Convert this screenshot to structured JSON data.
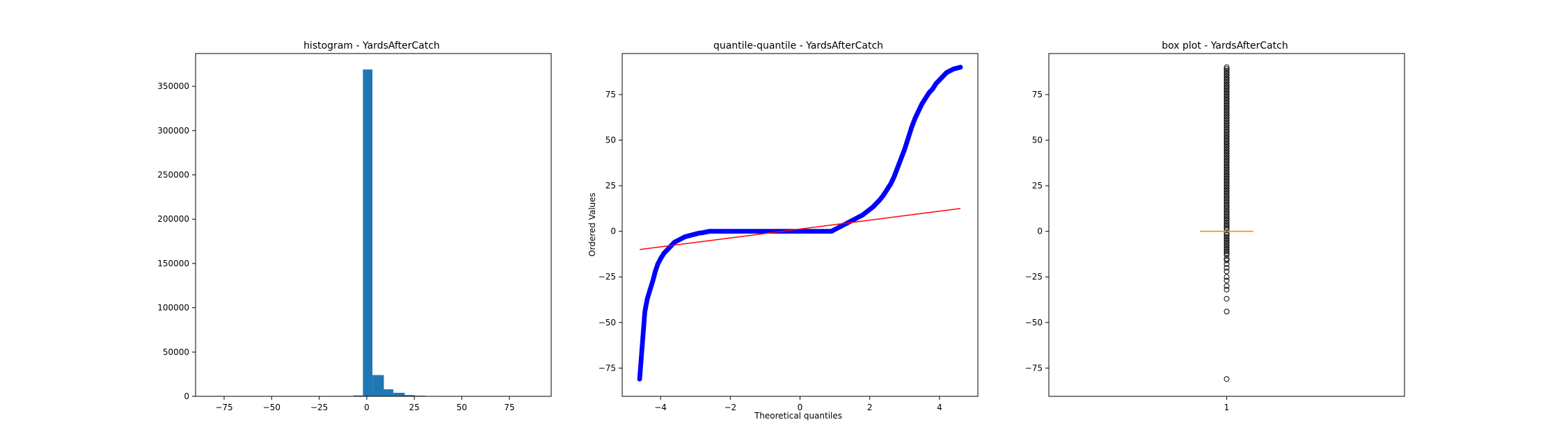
{
  "chart_data": [
    {
      "type": "bar",
      "title": "histogram - YardsAfterCatch",
      "xlabel": "",
      "ylabel": "",
      "xlim": [
        -90,
        97
      ],
      "ylim": [
        0,
        387000
      ],
      "xticks": [
        -75,
        -50,
        -25,
        0,
        25,
        50,
        75
      ],
      "yticks": [
        0,
        50000,
        100000,
        150000,
        200000,
        250000,
        300000,
        350000
      ],
      "color": "#1f77b4",
      "bins": [
        {
          "x0": -7,
          "x1": -2,
          "value": 1000
        },
        {
          "x0": -2,
          "x1": 3,
          "value": 369000
        },
        {
          "x0": 3,
          "x1": 9,
          "value": 24000
        },
        {
          "x0": 9,
          "x1": 14,
          "value": 8000
        },
        {
          "x0": 14,
          "x1": 20,
          "value": 4000
        },
        {
          "x0": 20,
          "x1": 25,
          "value": 1500
        },
        {
          "x0": 25,
          "x1": 31,
          "value": 700
        },
        {
          "x0": 31,
          "x1": 37,
          "value": 400
        },
        {
          "x0": 37,
          "x1": 42,
          "value": 300
        },
        {
          "x0": 42,
          "x1": 48,
          "value": 200
        },
        {
          "x0": 48,
          "x1": 54,
          "value": 120
        },
        {
          "x0": 54,
          "x1": 60,
          "value": 60
        }
      ]
    },
    {
      "type": "scatter",
      "title": "quantile-quantile - YardsAfterCatch",
      "xlabel": "Theoretical quantiles",
      "ylabel": "Ordered Values",
      "xlim": [
        -5.1,
        5.1
      ],
      "ylim": [
        -90.5,
        97.5
      ],
      "xticks": [
        -4,
        -2,
        0,
        2,
        4
      ],
      "yticks": [
        -75,
        -50,
        -25,
        0,
        25,
        50,
        75
      ],
      "marker_color": "#0000ff",
      "line_color": "#ff0000",
      "fit_line": {
        "x": [
          -4.6,
          4.6
        ],
        "y": [
          -10,
          12.5
        ]
      },
      "quantile_curve": {
        "x": [
          -4.6,
          -4.45,
          -4.38,
          -4.3,
          -4.22,
          -4.15,
          -4.08,
          -4.0,
          -3.9,
          -3.8,
          -3.7,
          -3.6,
          -3.5,
          -3.4,
          -3.3,
          -3.2,
          -3.1,
          -3.0,
          -2.9,
          -2.8,
          -2.7,
          -2.6,
          -2.5,
          -2.0,
          -1.5,
          -1.0,
          -0.5,
          0.0,
          0.5,
          0.9,
          1.0,
          1.1,
          1.2,
          1.3,
          1.4,
          1.5,
          1.6,
          1.7,
          1.8,
          1.9,
          2.0,
          2.1,
          2.2,
          2.3,
          2.4,
          2.5,
          2.6,
          2.7,
          2.8,
          2.9,
          3.0,
          3.1,
          3.2,
          3.3,
          3.4,
          3.5,
          3.6,
          3.7,
          3.8,
          3.9,
          4.0,
          4.1,
          4.2,
          4.3,
          4.4,
          4.6
        ],
        "y": [
          -81,
          -44,
          -37,
          -32,
          -27,
          -22,
          -18,
          -15,
          -12,
          -10,
          -8,
          -6,
          -5,
          -4,
          -3,
          -2.5,
          -2,
          -1.5,
          -1,
          -0.8,
          -0.4,
          0,
          0,
          0,
          0,
          0,
          0,
          0,
          0,
          0,
          1,
          2,
          3,
          4,
          5,
          6,
          7,
          8,
          9,
          10.5,
          12,
          13.5,
          15.5,
          17.5,
          20,
          23,
          26,
          30,
          35,
          40,
          45,
          51,
          57,
          62,
          66,
          70,
          73,
          76,
          78,
          81,
          83,
          85,
          87,
          88,
          89,
          90
        ]
      }
    },
    {
      "type": "box",
      "title": "box plot - YardsAfterCatch",
      "xlabel": "",
      "ylabel": "",
      "xlim": [
        0.5,
        1.5
      ],
      "ylim": [
        -90.5,
        97.5
      ],
      "xticks": [
        1
      ],
      "yticks": [
        -75,
        -50,
        -25,
        0,
        25,
        50,
        75
      ],
      "median": 0,
      "q1": 0,
      "q3": 0,
      "median_color": "#ff7f0e",
      "outliers": [
        -81,
        -44,
        -37,
        -32,
        -30,
        -27,
        -25,
        -22,
        -20,
        -18,
        -16,
        -15,
        -13,
        -12,
        -11,
        -10,
        -9,
        -8,
        -7,
        -6,
        -5,
        -4,
        -3,
        -2,
        -1,
        1,
        2,
        3,
        4,
        5,
        6,
        7,
        8,
        9,
        10,
        11,
        12,
        13,
        14,
        15,
        16,
        17,
        18,
        19,
        20,
        21,
        22,
        23,
        24,
        25,
        26,
        27,
        28,
        29,
        30,
        31,
        32,
        33,
        34,
        35,
        36,
        37,
        38,
        39,
        40,
        41,
        42,
        43,
        44,
        45,
        46,
        47,
        48,
        49,
        50,
        51,
        52,
        53,
        54,
        55,
        56,
        57,
        58,
        59,
        60,
        61,
        62,
        63,
        64,
        65,
        66,
        67,
        68,
        69,
        70,
        71,
        72,
        73,
        74,
        75,
        76,
        77,
        78,
        79,
        80,
        81,
        82,
        83,
        84,
        85,
        86,
        87,
        88,
        89,
        90
      ]
    }
  ]
}
